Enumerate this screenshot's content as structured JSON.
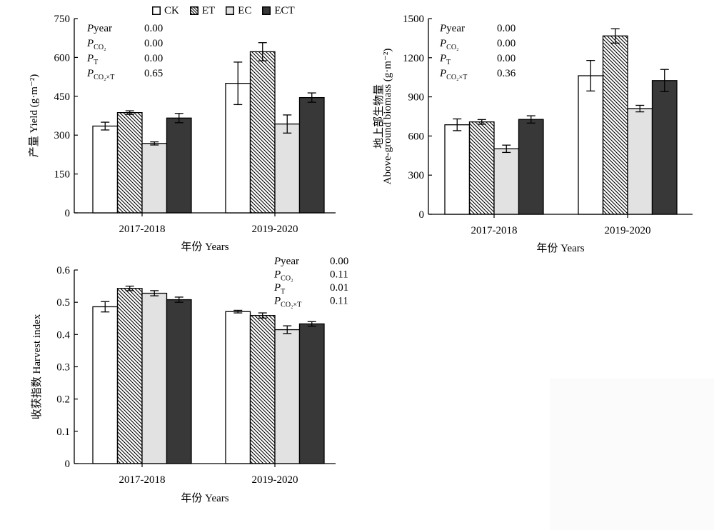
{
  "legend": [
    {
      "name": "CK",
      "fill": "#ffffff",
      "pattern": "none"
    },
    {
      "name": "ET",
      "fill": "#ffffff",
      "pattern": "hatch"
    },
    {
      "name": "EC",
      "fill": "#e2e2e2",
      "pattern": "none"
    },
    {
      "name": "ECT",
      "fill": "#383838",
      "pattern": "none"
    }
  ],
  "chart_data": [
    {
      "type": "bar",
      "ylabel": "产量 Yield (g·m⁻²)",
      "xlabel": "年份 Years",
      "categories": [
        "2017-2018",
        "2019-2020"
      ],
      "ylim": [
        0,
        750
      ],
      "yticks": [
        "0",
        "150",
        "300",
        "450",
        "600",
        "750"
      ],
      "series": [
        {
          "name": "CK",
          "values": [
            335,
            500
          ],
          "errors": [
            15,
            82
          ]
        },
        {
          "name": "ET",
          "values": [
            387,
            622
          ],
          "errors": [
            7,
            35
          ]
        },
        {
          "name": "EC",
          "values": [
            268,
            343
          ],
          "errors": [
            6,
            35
          ]
        },
        {
          "name": "ECT",
          "values": [
            366,
            445
          ],
          "errors": [
            18,
            18
          ]
        }
      ],
      "stats": [
        {
          "label": "P",
          "sub": "year",
          "value": "0.00"
        },
        {
          "label": "P",
          "sub": "CO₂",
          "value": "0.00"
        },
        {
          "label": "P",
          "sub": "T",
          "value": "0.00"
        },
        {
          "label": "P",
          "sub": "CO₂×T",
          "value": "0.65"
        }
      ]
    },
    {
      "type": "bar",
      "ylabel": "地上部生物量 Above-ground biomass (g·m⁻²)",
      "xlabel": "年份 Years",
      "categories": [
        "2017-2018",
        "2019-2020"
      ],
      "ylim": [
        0,
        1500
      ],
      "yticks": [
        "0",
        "300",
        "600",
        "900",
        "1200",
        "1500"
      ],
      "series": [
        {
          "name": "CK",
          "values": [
            686,
            1062
          ],
          "errors": [
            45,
            117
          ]
        },
        {
          "name": "ET",
          "values": [
            708,
            1367
          ],
          "errors": [
            18,
            55
          ]
        },
        {
          "name": "EC",
          "values": [
            502,
            810
          ],
          "errors": [
            28,
            25
          ]
        },
        {
          "name": "ECT",
          "values": [
            727,
            1025
          ],
          "errors": [
            28,
            85
          ]
        }
      ],
      "stats": [
        {
          "label": "P",
          "sub": "year",
          "value": "0.00"
        },
        {
          "label": "P",
          "sub": "CO₂",
          "value": "0.00"
        },
        {
          "label": "P",
          "sub": "T",
          "value": "0.00"
        },
        {
          "label": "P",
          "sub": "CO₂×T",
          "value": "0.36"
        }
      ]
    },
    {
      "type": "bar",
      "ylabel": "收获指数 Harvest index",
      "xlabel": "年份 Years",
      "categories": [
        "2017-2018",
        "2019-2020"
      ],
      "ylim": [
        0,
        0.6
      ],
      "yticks": [
        "0",
        "0.1",
        "0.2",
        "0.3",
        "0.4",
        "0.5",
        "0.6"
      ],
      "series": [
        {
          "name": "CK",
          "values": [
            0.486,
            0.471
          ],
          "errors": [
            0.016,
            0.004
          ]
        },
        {
          "name": "ET",
          "values": [
            0.543,
            0.459
          ],
          "errors": [
            0.007,
            0.008
          ]
        },
        {
          "name": "EC",
          "values": [
            0.528,
            0.415
          ],
          "errors": [
            0.008,
            0.012
          ]
        },
        {
          "name": "ECT",
          "values": [
            0.508,
            0.433
          ],
          "errors": [
            0.008,
            0.007
          ]
        }
      ],
      "stats": [
        {
          "label": "P",
          "sub": "year",
          "value": "0.00"
        },
        {
          "label": "P",
          "sub": "CO₂",
          "value": "0.11"
        },
        {
          "label": "P",
          "sub": "T",
          "value": "0.01"
        },
        {
          "label": "P",
          "sub": "CO₂×T",
          "value": "0.11"
        }
      ]
    }
  ]
}
